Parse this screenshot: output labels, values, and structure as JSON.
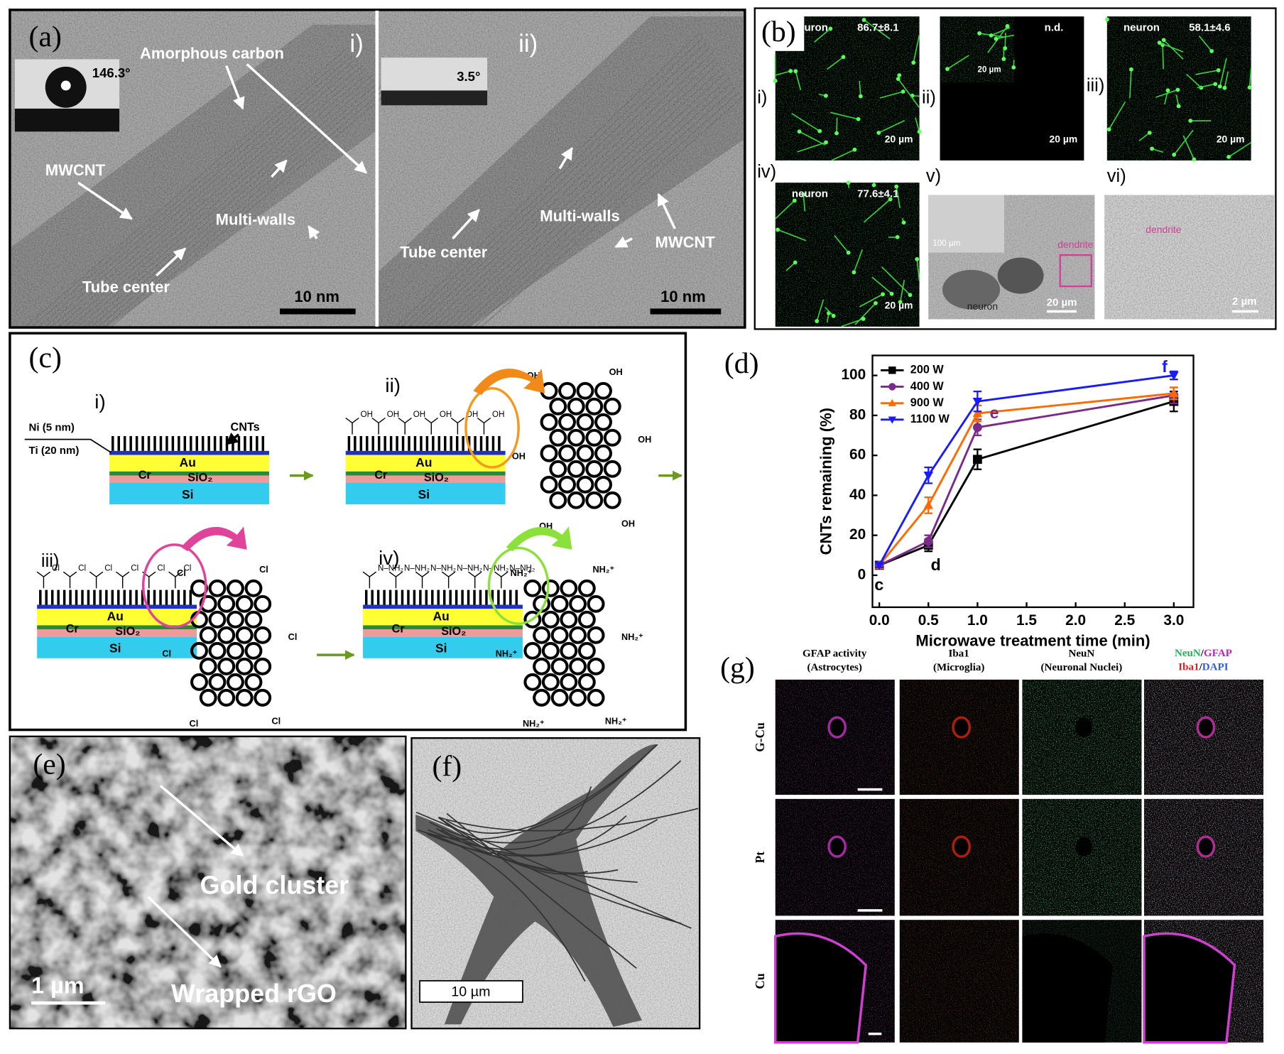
{
  "panel_a": {
    "label": "(a)",
    "left": {
      "label": "i)",
      "angle": "146.3°",
      "amorphous": "Amorphous carbon",
      "mwcnt": "MWCNT",
      "walls": "Multi-walls",
      "center": "Tube center",
      "scale": "10 nm"
    },
    "right": {
      "label": "ii)",
      "angle": "3.5°",
      "walls": "Multi-walls",
      "center": "Tube center",
      "mwcnt": "MWCNT",
      "scale": "10 nm"
    }
  },
  "panel_b": {
    "label": "(b)",
    "images": [
      {
        "label": "i)",
        "tag": "neuron",
        "value": "86.7±8.1",
        "scale": "20 µm"
      },
      {
        "label": "ii)",
        "value": "n.d.",
        "scale": "20 µm",
        "inset_scale": "20 µm"
      },
      {
        "label": "iii)",
        "tag": "neuron",
        "value": "58.1±4.6",
        "scale": "20 µm"
      },
      {
        "label": "iv)",
        "tag": "neuron",
        "value": "77.6±4.1",
        "scale": "20 µm"
      },
      {
        "label": "v)",
        "tag": "dendrite",
        "cell": "neuron",
        "scale": "20 µm",
        "inset_scale": "100 µm"
      },
      {
        "label": "vi)",
        "tag": "dendrite",
        "scale": "2 µm"
      }
    ]
  },
  "panel_c": {
    "label": "(c)",
    "steps": [
      "i)",
      "ii)",
      "iii)",
      "iv)"
    ],
    "cnts": "CNTs",
    "ni": "Ni (5 nm)",
    "ti": "Ti (20 nm)",
    "layers": {
      "au": "Au",
      "cr": "Cr",
      "sio2": "SiO₂",
      "si": "Si"
    },
    "groups": {
      "ii": "OH",
      "iii": "Cl",
      "iv": "N–NH₂"
    },
    "mol": {
      "ii": "OH",
      "iii": "Cl",
      "iv": "NH₂⁺"
    }
  },
  "chart_data": {
    "type": "line",
    "label": "(d)",
    "x_label": "Microwave treatment time (min)",
    "y_label": "CNTs remaining (%)",
    "x": [
      0,
      0.5,
      1,
      3
    ],
    "series": [
      {
        "name": "200 W",
        "color": "#000000",
        "marker": "square",
        "values": [
          5,
          15,
          58,
          87
        ],
        "errors": [
          1,
          3,
          5,
          5
        ]
      },
      {
        "name": "400 W",
        "color": "#7b2a8a",
        "marker": "circle",
        "values": [
          5,
          17,
          74,
          90
        ],
        "errors": [
          1,
          3,
          4,
          4
        ]
      },
      {
        "name": "900 W",
        "color": "#ff6a00",
        "marker": "triangle-up",
        "values": [
          5,
          35,
          81,
          91
        ],
        "errors": [
          1,
          4,
          4,
          3
        ]
      },
      {
        "name": "1100 W",
        "color": "#1a1aff",
        "marker": "triangle-down",
        "values": [
          5,
          50,
          87,
          100
        ],
        "errors": [
          1,
          4,
          5,
          2
        ]
      }
    ],
    "point_labels": [
      {
        "text": "c",
        "color": "#000000"
      },
      {
        "text": "d",
        "color": "#000000"
      },
      {
        "text": "e",
        "color": "#7b2a8a"
      },
      {
        "text": "f",
        "color": "#1a1aff"
      }
    ],
    "xlim": [
      -0.07,
      3.2
    ],
    "ylim": [
      -16,
      110
    ],
    "xticks": [
      {
        "value": 0,
        "label": "0.0"
      },
      {
        "value": 0.5,
        "label": "0.5"
      },
      {
        "value": 1,
        "label": "1.0"
      },
      {
        "value": 1.5,
        "label": "1.5"
      },
      {
        "value": 2,
        "label": "2.0"
      },
      {
        "value": 2.5,
        "label": "2.5"
      },
      {
        "value": 3,
        "label": "3.0"
      }
    ],
    "yticks": [
      0,
      20,
      40,
      60,
      80,
      100
    ],
    "legend": "upper left"
  },
  "panel_e": {
    "label": "(e)",
    "gold": "Gold cluster",
    "rgo": "Wrapped rGO",
    "scale": "1 µm"
  },
  "panel_f": {
    "label": "(f)",
    "scale": "10 µm"
  },
  "panel_g": {
    "label": "(g)",
    "columns": [
      [
        "GFAP activity",
        "(Astrocytes)"
      ],
      [
        "Iba1",
        "(Microglia)"
      ],
      [
        "NeuN",
        "(Neuronal Nuclei)"
      ]
    ],
    "merge": [
      "NeuN",
      "/",
      "GFAP",
      "Iba1",
      "/",
      "DAPI"
    ],
    "rows": [
      "G-Cu",
      "Pt",
      "Cu"
    ]
  }
}
